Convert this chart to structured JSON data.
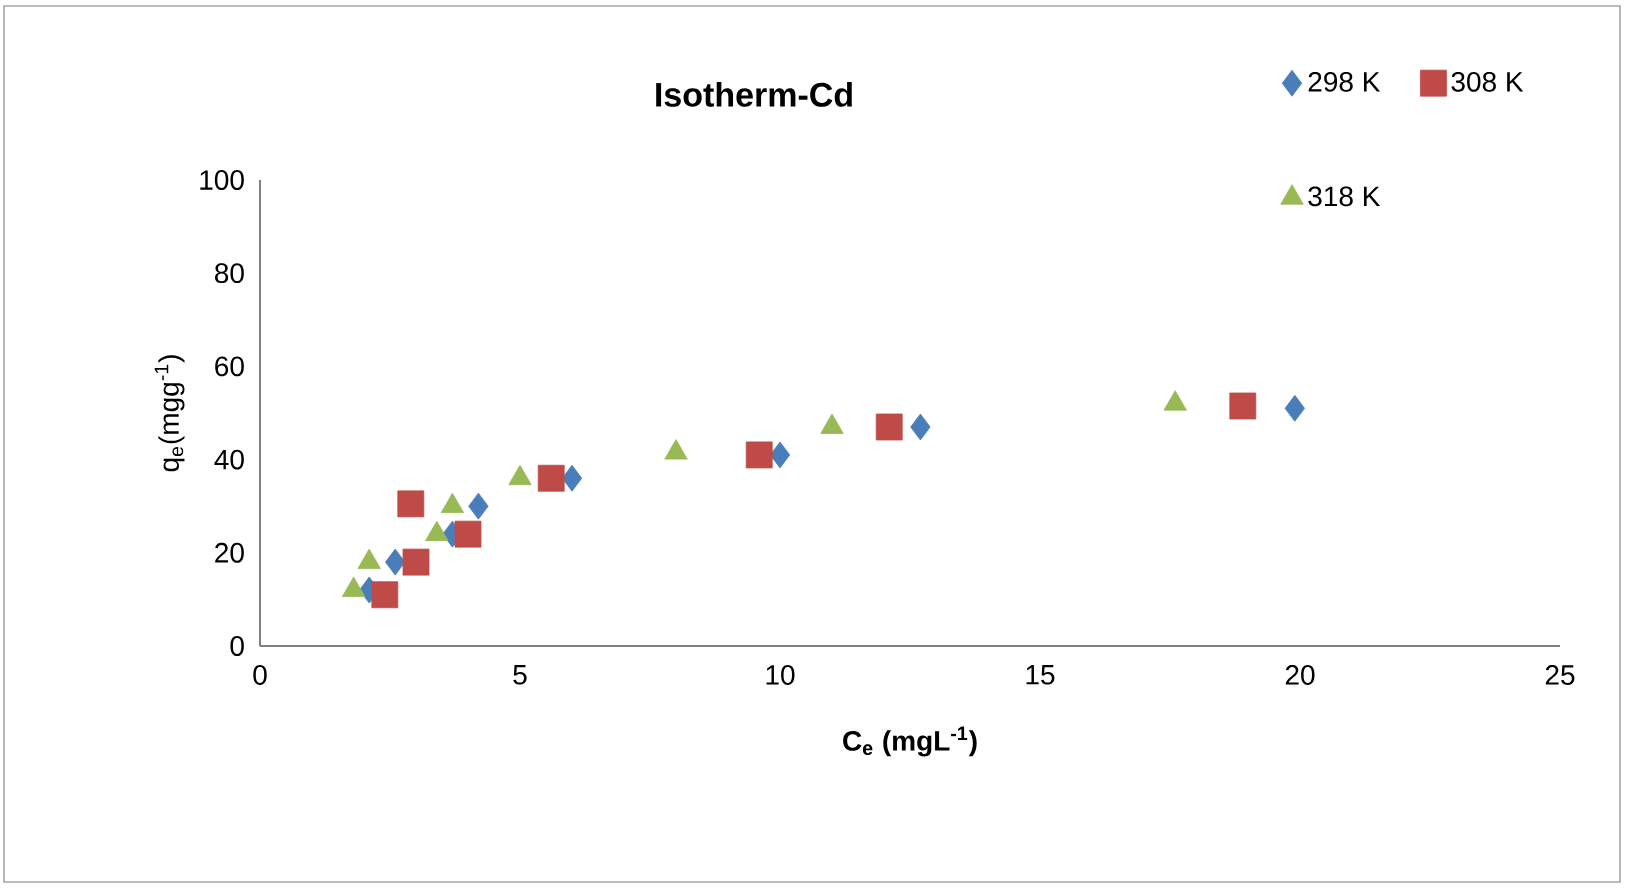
{
  "chart_data": {
    "type": "scatter",
    "title": "Isotherm-Cd",
    "xlabel": "C$_{e}$ (mgL$^{-1}$)",
    "ylabel": "q$_{e}$(mgg$^{-1}$)",
    "xlim": [
      0,
      25
    ],
    "xticks": [
      0,
      5,
      10,
      15,
      20,
      25
    ],
    "ylim": [
      0,
      100
    ],
    "yticks": [
      0,
      20,
      40,
      60,
      80,
      100
    ],
    "grid": false,
    "legend": "top right",
    "series": [
      {
        "name": "298 K",
        "color": "#4a7ebb",
        "marker": "diamond",
        "x": [
          2.1,
          2.6,
          3.7,
          4.2,
          6.0,
          10.0,
          12.7,
          19.9
        ],
        "values": [
          12,
          18,
          24,
          30,
          36,
          41,
          47,
          51
        ]
      },
      {
        "name": "308 K",
        "color": "#be4b48",
        "marker": "square",
        "x": [
          2.4,
          3.0,
          4.0,
          2.9,
          5.6,
          9.6,
          12.1,
          18.9
        ],
        "values": [
          11,
          18,
          24,
          30.5,
          36,
          41,
          47,
          51.5
        ]
      },
      {
        "name": "318 K",
        "color": "#98b954",
        "marker": "triangle",
        "x": [
          1.8,
          2.1,
          3.4,
          3.7,
          5.0,
          8.0,
          11.0,
          17.6
        ],
        "values": [
          12,
          18,
          24,
          30,
          36,
          41.5,
          47,
          52
        ]
      }
    ]
  }
}
